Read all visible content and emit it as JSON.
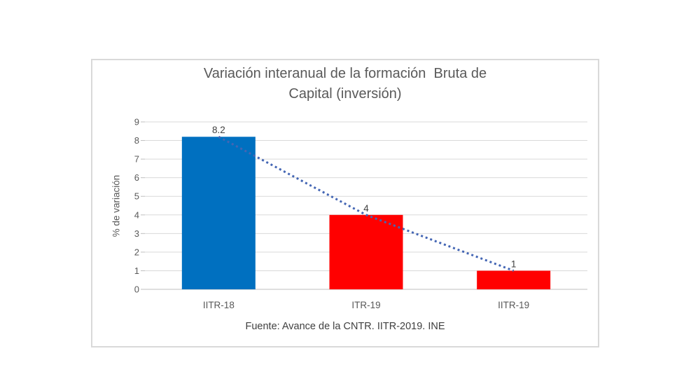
{
  "chart_data": {
    "type": "bar",
    "title": "Variación interanual de la formación  Bruta de Capital (inversión)",
    "title_lines": [
      "Variación interanual de la formación  Bruta de",
      "Capital (inversión)"
    ],
    "ylabel": "% de variación",
    "xlabel": "",
    "categories": [
      "IITR-18",
      "ITR-19",
      "IITR-19"
    ],
    "values": [
      8.2,
      4,
      1
    ],
    "data_labels": [
      "8.2",
      "4",
      "1"
    ],
    "bar_colors": [
      "#0070C0",
      "#FF0000",
      "#FF0000"
    ],
    "ylim": [
      0,
      9
    ],
    "yticks": [
      0,
      1,
      2,
      3,
      4,
      5,
      6,
      7,
      8,
      9
    ],
    "grid": true,
    "legend": "none",
    "trendline": {
      "style": "dotted",
      "color": "#4466B4",
      "values": [
        8.2,
        4,
        1
      ]
    },
    "source_note": "Fuente: Avance de la CNTR. IITR-2019. INE"
  },
  "style": {
    "grid_color": "#d9d9d9",
    "axis_line_color": "#bfbfbf",
    "tick_color": "#bfbfbf",
    "tick_label_color": "#595959",
    "category_label_color": "#595959",
    "data_label_color": "#404040",
    "frame_border_color": "#d9d9d9",
    "background": "#ffffff"
  }
}
